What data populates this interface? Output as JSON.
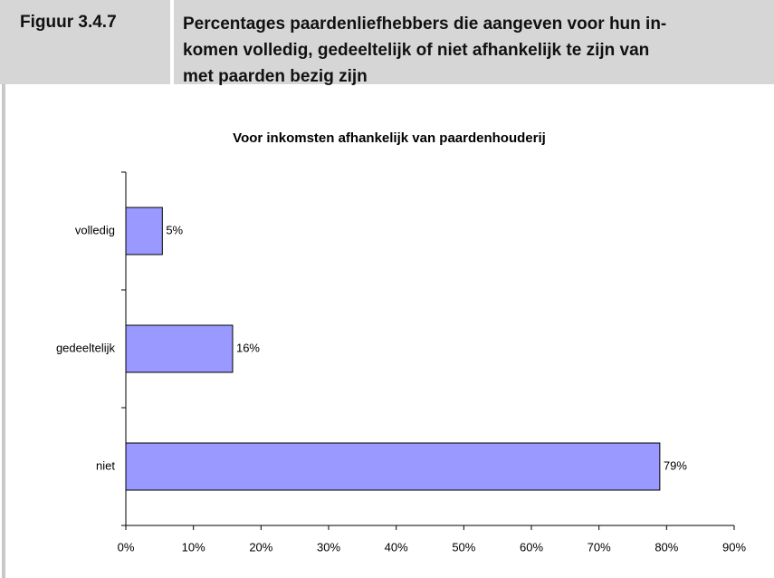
{
  "header": {
    "figure": "Figuur 3.4.7",
    "title_lines": [
      "Percentages paardenliefhebbers die aangeven voor hun in-",
      "komen volledig, gedeeltelijk of niet afhankelijk te zijn van",
      "met paarden bezig zijn"
    ]
  },
  "chart_data": {
    "type": "hbar",
    "title": "Voor inkomsten afhankelijk van paardenhouderij",
    "categories": [
      "volledig",
      "gedeeltelijk",
      "niet"
    ],
    "values": [
      5.4,
      15.8,
      79.0
    ],
    "value_labels": [
      "5%",
      "16%",
      "79%"
    ],
    "color": "#9999ff",
    "xlim": [
      0,
      90
    ],
    "xticks": [
      {
        "value": 0,
        "label": "0%"
      },
      {
        "value": 10,
        "label": "10%"
      },
      {
        "value": 20,
        "label": "20%"
      },
      {
        "value": 30,
        "label": "30%"
      },
      {
        "value": 40,
        "label": "40%"
      },
      {
        "value": 50,
        "label": "50%"
      },
      {
        "value": 60,
        "label": "60%"
      },
      {
        "value": 70,
        "label": "70%"
      },
      {
        "value": 80,
        "label": "80%"
      },
      {
        "value": 90,
        "label": "90%"
      }
    ]
  }
}
